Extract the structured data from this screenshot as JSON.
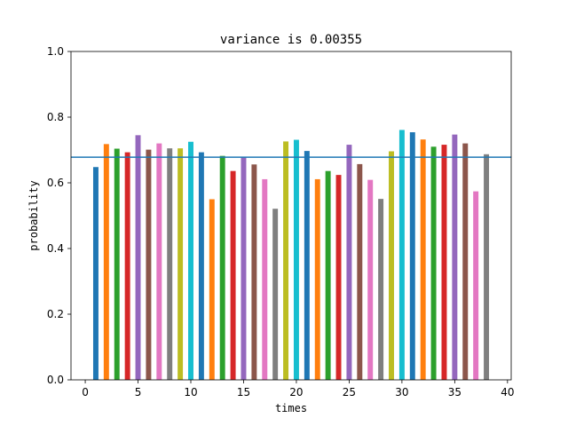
{
  "chart_data": {
    "type": "bar",
    "title": "variance is 0.00355",
    "xlabel": "times",
    "ylabel": "probability",
    "xlim": [
      -1.35,
      40.35
    ],
    "ylim": [
      0,
      1.0
    ],
    "xticks": [
      0,
      5,
      10,
      15,
      20,
      25,
      30,
      35,
      40
    ],
    "yticks": [
      0.0,
      0.2,
      0.4,
      0.6,
      0.8,
      1.0
    ],
    "ytick_labels": [
      "0.0",
      "0.2",
      "0.4",
      "0.6",
      "0.8",
      "1.0"
    ],
    "mean_line": 0.678,
    "grid": false,
    "x": [
      1,
      2,
      3,
      4,
      5,
      6,
      7,
      8,
      9,
      10,
      11,
      12,
      13,
      14,
      15,
      16,
      17,
      18,
      19,
      20,
      21,
      22,
      23,
      24,
      25,
      26,
      27,
      28,
      29,
      30,
      31,
      32,
      33,
      34,
      35,
      36,
      37,
      38
    ],
    "values": [
      0.648,
      0.718,
      0.704,
      0.693,
      0.745,
      0.701,
      0.72,
      0.705,
      0.705,
      0.725,
      0.693,
      0.55,
      0.682,
      0.636,
      0.678,
      0.656,
      0.611,
      0.521,
      0.726,
      0.731,
      0.697,
      0.611,
      0.636,
      0.624,
      0.716,
      0.657,
      0.609,
      0.551,
      0.696,
      0.761,
      0.754,
      0.732,
      0.71,
      0.716,
      0.747,
      0.72,
      0.574,
      0.687
    ],
    "colors": [
      "#1f77b4",
      "#ff7f0e",
      "#2ca02c",
      "#d62728",
      "#9467bd",
      "#8c564b",
      "#e377c2",
      "#7f7f7f",
      "#bcbd22",
      "#17becf"
    ],
    "mean_line_color": "#1f77b4"
  }
}
